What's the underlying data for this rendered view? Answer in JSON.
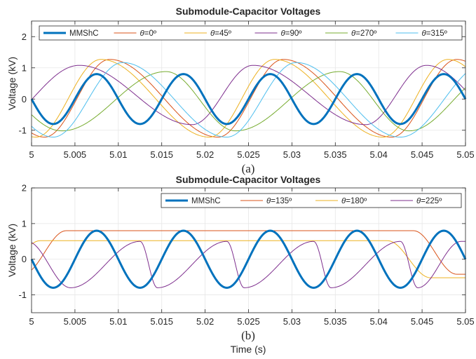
{
  "chart_data": [
    {
      "type": "line",
      "panel_label": "(a)",
      "title": "Submodule-Capacitor Voltages",
      "xlabel": "",
      "ylabel": "Voltage (kV)",
      "xlim": [
        5,
        5.05
      ],
      "ylim": [
        -1.5,
        2.5
      ],
      "xticks": [
        5,
        5.005,
        5.01,
        5.015,
        5.02,
        5.025,
        5.03,
        5.035,
        5.04,
        5.045,
        5.05
      ],
      "xtick_labels": [
        "5",
        "5.005",
        "5.01",
        "5.015",
        "5.02",
        "5.025",
        "5.03",
        "5.035",
        "5.04",
        "5.045",
        "5.05"
      ],
      "yticks": [
        -1,
        0,
        1,
        2
      ],
      "ytick_labels": [
        "-1",
        "0",
        "1",
        "2"
      ],
      "grid": true,
      "legend_position": "top (single row)",
      "series": [
        {
          "name": "MMShC",
          "color": "#0072BD",
          "linewidth": 3,
          "amplitude_kV": 0.8,
          "min_kV": -0.8,
          "max_kV": 0.8,
          "period_s": 0.01,
          "zero_crossings_s": [
            5.0,
            5.005,
            5.01,
            5.015,
            5.02,
            5.025,
            5.03,
            5.035,
            5.04,
            5.045,
            5.05
          ],
          "peaks_s": [
            5.0075,
            5.0175,
            5.0275,
            5.0375,
            5.0475
          ],
          "troughs_s": [
            5.0025,
            5.0125,
            5.0225,
            5.0325,
            5.0425
          ]
        },
        {
          "name": "θ=0º",
          "color": "#D95319",
          "min_kV": -1.22,
          "max_kV": 1.27,
          "period_s": 0.02,
          "peaks_s": [
            5.009,
            5.029,
            5.049
          ],
          "troughs_s": [
            5.0015,
            5.0215,
            5.0415
          ]
        },
        {
          "name": "θ=45º",
          "color": "#EDB120",
          "min_kV": -1.22,
          "max_kV": 1.27,
          "period_s": 0.02,
          "peaks_s": [
            5.008,
            5.028,
            5.048
          ],
          "troughs_s": [
            5.0005,
            5.0205,
            5.0405
          ]
        },
        {
          "name": "θ=90º",
          "color": "#7E2F8E",
          "min_kV": -0.82,
          "max_kV": 1.08,
          "period_s": 0.02,
          "peaks_s": [
            5.0055,
            5.0255,
            5.0455
          ],
          "troughs_s": [
            5.0185,
            5.0385
          ]
        },
        {
          "name": "θ=270º",
          "color": "#77AC30",
          "min_kV": -1.02,
          "max_kV": 0.88,
          "period_s": 0.02,
          "peaks_s": [
            5.0155,
            5.0355
          ],
          "troughs_s": [
            5.0035,
            5.0235,
            5.0435
          ]
        },
        {
          "name": "θ=315º",
          "color": "#4DBEEE",
          "min_kV": -1.22,
          "max_kV": 1.17,
          "period_s": 0.02,
          "peaks_s": [
            5.0105,
            5.0305
          ],
          "troughs_s": [
            5.0025,
            5.0225,
            5.0425
          ]
        }
      ]
    },
    {
      "type": "line",
      "panel_label": "(b)",
      "title": "Submodule-Capacitor Voltages",
      "xlabel": "Time (s)",
      "ylabel": "Voltage (kV)",
      "xlim": [
        5,
        5.05
      ],
      "ylim": [
        -1.5,
        2
      ],
      "xticks": [
        5,
        5.005,
        5.01,
        5.015,
        5.02,
        5.025,
        5.03,
        5.035,
        5.04,
        5.045,
        5.05
      ],
      "xtick_labels": [
        "5",
        "5.005",
        "5.01",
        "5.015",
        "5.02",
        "5.025",
        "5.03",
        "5.035",
        "5.04",
        "5.045",
        "5.05"
      ],
      "yticks": [
        -1,
        0,
        1,
        2
      ],
      "ytick_labels": [
        "-1",
        "0",
        "1",
        "2"
      ],
      "grid": true,
      "legend_position": "top-right (single row)",
      "series": [
        {
          "name": "MMShC",
          "color": "#0072BD",
          "linewidth": 3,
          "amplitude_kV": 0.8,
          "min_kV": -0.8,
          "max_kV": 0.8,
          "period_s": 0.01,
          "zero_crossings_s": [
            5.0,
            5.005,
            5.01,
            5.015,
            5.02,
            5.025,
            5.03,
            5.035,
            5.04,
            5.045,
            5.05
          ],
          "peaks_s": [
            5.0075,
            5.0175,
            5.0275,
            5.0375,
            5.0475
          ],
          "troughs_s": [
            5.0025,
            5.0125,
            5.0225,
            5.0325,
            5.0425
          ]
        },
        {
          "name": "θ=135º",
          "color": "#D95319",
          "min_kV": -0.42,
          "max_kV": 0.8,
          "period_s": 0.01,
          "peaks_s": [
            5.004,
            5.014,
            5.024,
            5.034,
            5.044
          ]
        },
        {
          "name": "θ=180º",
          "color": "#EDB120",
          "min_kV": -0.52,
          "max_kV": 0.52,
          "period_s": 0.01,
          "peaks_s": [
            5.001,
            5.011,
            5.021,
            5.031,
            5.041
          ]
        },
        {
          "name": "θ=225º",
          "color": "#7E2F8E",
          "min_kV": -0.8,
          "max_kV": 0.5,
          "period_s": 0.01,
          "peaks_s": [
            5.0125,
            5.0225,
            5.0325,
            5.0425
          ],
          "troughs_s": [
            5.0045,
            5.0145,
            5.0245,
            5.0345,
            5.0445
          ]
        }
      ]
    }
  ]
}
